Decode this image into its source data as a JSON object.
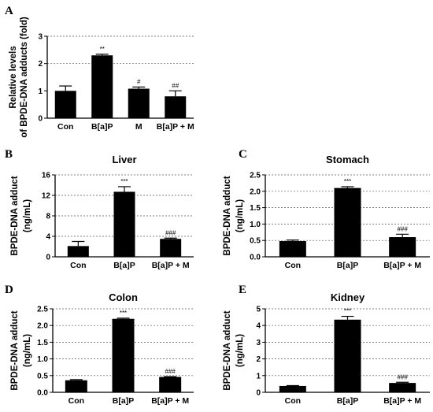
{
  "chart_data": [
    {
      "panel": "A",
      "type": "bar",
      "title": "",
      "ylabel_lines": [
        "Relative levels",
        "of BPDE-DNA adducts (fold)"
      ],
      "categories": [
        "Con",
        "B[a]P",
        "M",
        "B[a]P + M"
      ],
      "values": [
        1.0,
        2.3,
        1.08,
        0.8
      ],
      "errors": [
        0.18,
        0.04,
        0.06,
        0.2
      ],
      "annotations": [
        "",
        "**",
        "#",
        "##"
      ],
      "ylim": [
        0,
        3
      ],
      "yticks": [
        0,
        1,
        2,
        3
      ],
      "grid_at": [
        2,
        3
      ],
      "bar_color": "#000000",
      "grid": true
    },
    {
      "panel": "B",
      "type": "bar",
      "title": "Liver",
      "ylabel_lines": [
        "BPDE-DNA adduct",
        "(ng/mL)"
      ],
      "categories": [
        "Con",
        "B[a]P",
        "B[a]P + M"
      ],
      "values": [
        2.1,
        12.7,
        3.5
      ],
      "errors": [
        0.9,
        1.0,
        0.15
      ],
      "annotations": [
        "",
        "***",
        "###"
      ],
      "ylim": [
        0,
        16
      ],
      "yticks": [
        0,
        4,
        8,
        12,
        16
      ],
      "grid_at": [
        4,
        8,
        12,
        16
      ],
      "bar_color": "#000000",
      "grid": true
    },
    {
      "panel": "C",
      "type": "bar",
      "title": "Stomach",
      "ylabel_lines": [
        "BPDE-DNA adduct",
        "(ng/mL)"
      ],
      "categories": [
        "Con",
        "B[a]P",
        "B[a]P + M"
      ],
      "values": [
        0.48,
        2.1,
        0.6
      ],
      "errors": [
        0.03,
        0.04,
        0.09
      ],
      "annotations": [
        "",
        "***",
        "###"
      ],
      "ylim": [
        0,
        2.5
      ],
      "yticks": [
        0.0,
        0.5,
        1.0,
        1.5,
        2.0,
        2.5
      ],
      "ytick_labels": [
        "0.0",
        "0.5",
        "1.0",
        "1.5",
        "2.0",
        "2.5"
      ],
      "grid_at": [
        0.5,
        1.0,
        1.5,
        2.0,
        2.5
      ],
      "bar_color": "#000000",
      "grid": true
    },
    {
      "panel": "D",
      "type": "bar",
      "title": "Colon",
      "ylabel_lines": [
        "BPDE-DNA adduct",
        "(ng/mL)"
      ],
      "categories": [
        "Con",
        "B[a]P",
        "B[a]P + M"
      ],
      "values": [
        0.36,
        2.2,
        0.46
      ],
      "errors": [
        0.02,
        0.02,
        0.01
      ],
      "annotations": [
        "",
        "***",
        "###"
      ],
      "ylim": [
        0,
        2.5
      ],
      "yticks": [
        0.0,
        0.5,
        1.0,
        1.5,
        2.0,
        2.5
      ],
      "ytick_labels": [
        "0.0",
        "0.5",
        "1.0",
        "1.5",
        "2.0",
        "2.5"
      ],
      "grid_at": [
        0.5,
        1.0,
        1.5,
        2.0,
        2.5
      ],
      "bar_color": "#000000",
      "grid": true
    },
    {
      "panel": "E",
      "type": "bar",
      "title": "Kidney",
      "ylabel_lines": [
        "BPDE-DNA adduct",
        "(ng/mL)"
      ],
      "categories": [
        "Con",
        "B[a]P",
        "B[a]P + M"
      ],
      "values": [
        0.38,
        4.35,
        0.56
      ],
      "errors": [
        0.02,
        0.2,
        0.04
      ],
      "annotations": [
        "",
        "***",
        "###"
      ],
      "ylim": [
        0,
        5
      ],
      "yticks": [
        0,
        1,
        2,
        3,
        4,
        5
      ],
      "grid_at": [
        1,
        2,
        3,
        4,
        5
      ],
      "bar_color": "#000000",
      "grid": true
    }
  ]
}
